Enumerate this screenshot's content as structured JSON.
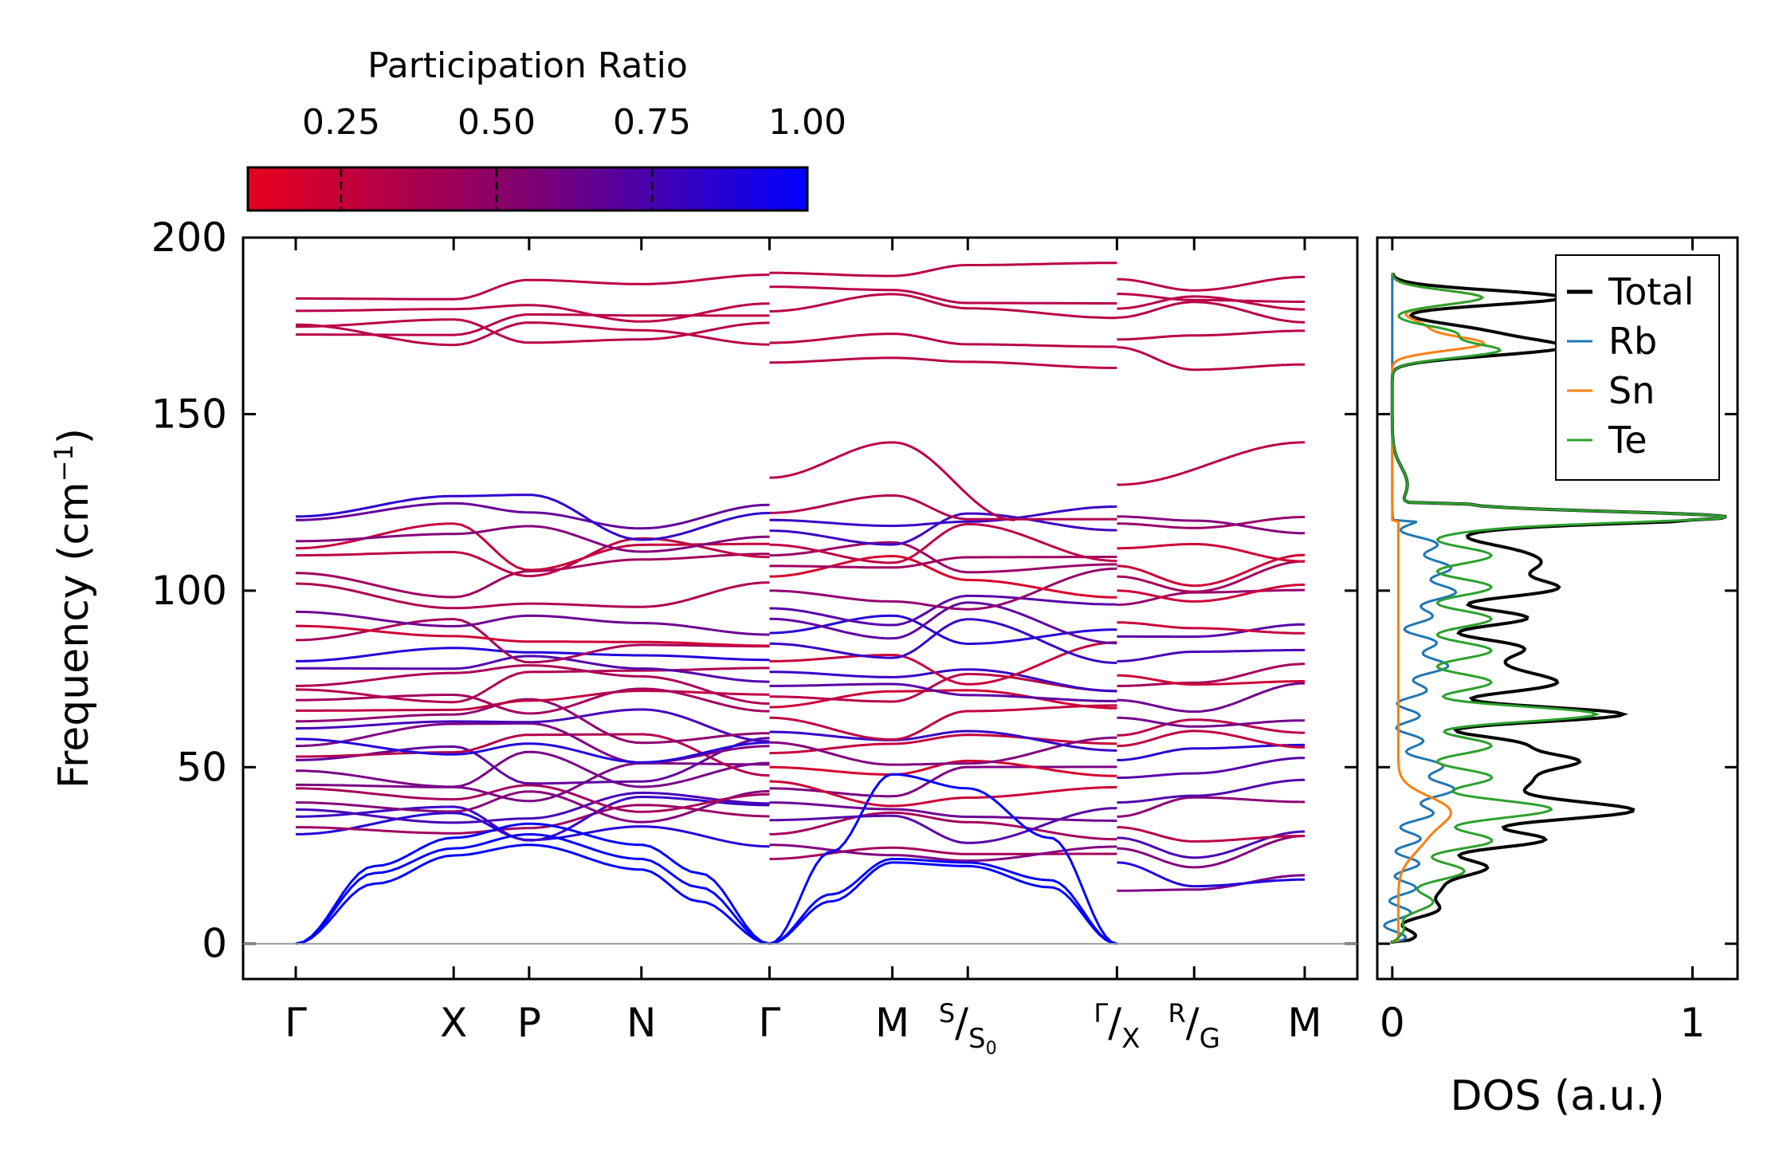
{
  "chart_data": [
    {
      "type": "line",
      "name": "phonon-band-structure",
      "ylabel": "Frequency (cm",
      "ylabel_sup": "−1",
      "ylabel_close": ")",
      "ylim": [
        -10,
        200
      ],
      "yticks": [
        0,
        50,
        100,
        150,
        200
      ],
      "ytick_labels": [
        "0",
        "50",
        "100",
        "150",
        "200"
      ],
      "kpath_x": [
        0,
        0.9,
        1.33,
        1.97,
        2.7,
        3.4,
        3.83,
        4.68,
        5.12,
        5.75
      ],
      "kpath_labels": [
        {
          "x": 0,
          "main": "Γ"
        },
        {
          "x": 0.9,
          "main": "X"
        },
        {
          "x": 1.33,
          "main": "P"
        },
        {
          "x": 1.97,
          "main": "N"
        },
        {
          "x": 2.7,
          "main": "Γ"
        },
        {
          "x": 3.4,
          "main": "M"
        },
        {
          "x": 3.83,
          "num": "S",
          "den": "S",
          "den_sub": "0"
        },
        {
          "x": 4.68,
          "num": "Γ",
          "den": "X"
        },
        {
          "x": 5.12,
          "num": "R",
          "den": "G"
        },
        {
          "x": 5.75,
          "main": "M"
        }
      ],
      "xlim": [
        -0.3,
        6.05
      ],
      "segment_breaks": [
        2.7,
        4.68
      ],
      "acoustic": [
        {
          "x": [
            0,
            0.45,
            0.9,
            1.33,
            1.97,
            2.3,
            2.7
          ],
          "y": [
            0,
            17,
            25,
            28,
            21,
            12,
            0
          ],
          "pr": 1.0
        },
        {
          "x": [
            0,
            0.45,
            0.9,
            1.33,
            1.97,
            2.3,
            2.7
          ],
          "y": [
            0,
            20,
            27,
            31,
            24,
            16,
            0
          ],
          "pr": 1.0
        },
        {
          "x": [
            0,
            0.45,
            0.9,
            1.33,
            1.97,
            2.3,
            2.7
          ],
          "y": [
            0,
            22,
            30,
            34,
            28,
            20,
            0
          ],
          "pr": 1.0
        },
        {
          "x": [
            2.7,
            3.05,
            3.4,
            3.83,
            4.3,
            4.68
          ],
          "y": [
            0,
            12,
            23,
            22,
            16,
            0
          ],
          "pr": 1.0
        },
        {
          "x": [
            2.7,
            3.05,
            3.4,
            3.83,
            4.3,
            4.68
          ],
          "y": [
            0,
            26,
            48,
            44,
            30,
            0
          ],
          "pr": 1.0
        },
        {
          "x": [
            2.7,
            3.05,
            3.4,
            3.83,
            4.3,
            4.68
          ],
          "y": [
            0,
            14,
            24,
            23,
            18,
            0
          ],
          "pr": 1.0
        }
      ],
      "optical_levels_segment1": [
        31,
        33,
        36,
        38,
        40,
        44,
        45,
        49,
        52,
        53,
        56,
        58,
        61,
        63,
        66,
        69,
        72,
        73,
        78,
        80,
        86,
        90,
        94,
        102,
        105,
        110,
        112,
        114,
        120,
        121
      ],
      "optical_levels_segment2": [
        24,
        28,
        31,
        35,
        40,
        44,
        46,
        50,
        54,
        57,
        60,
        64,
        67,
        70,
        73,
        77,
        80,
        85,
        88,
        92,
        95,
        100,
        104,
        107,
        110,
        113,
        117,
        120,
        122
      ],
      "optical_levels_segment3": [
        15,
        23,
        27,
        30,
        33,
        36,
        40,
        47,
        52,
        56,
        59,
        64,
        69,
        73,
        76,
        80,
        87,
        91,
        96,
        100,
        104,
        107,
        112,
        119,
        121
      ],
      "high_bands_segment1": [
        172,
        174,
        176,
        180,
        186
      ],
      "high_bands_segment2": [
        166,
        172,
        180,
        183,
        191
      ],
      "high_bands_segment3": [
        166,
        172,
        178,
        181,
        183,
        187
      ],
      "isolated_band": {
        "x": [
          2.7,
          3.4,
          4.1
        ],
        "y": [
          132,
          142,
          120
        ]
      },
      "isolated_band3": {
        "x": [
          4.68,
          5.75
        ],
        "y": [
          130,
          142
        ]
      }
    },
    {
      "type": "line",
      "name": "phonon-dos",
      "xlabel": "DOS (a.u.)",
      "xlim": [
        -0.05,
        1.15
      ],
      "ylim": [
        -10,
        200
      ],
      "xticks": [
        0,
        1
      ],
      "xtick_labels": [
        "0",
        "1"
      ],
      "series": [
        {
          "name": "Total",
          "color": "#000000"
        },
        {
          "name": "Rb",
          "color": "#1f77b4"
        },
        {
          "name": "Sn",
          "color": "#ff7f0e"
        },
        {
          "name": "Te",
          "color": "#2ca02c"
        }
      ],
      "legend_position": "top-right"
    }
  ],
  "colorbar": {
    "title": "Participation Ratio",
    "ticks": [
      0.25,
      0.5,
      0.75,
      1.0
    ],
    "tick_labels": [
      "0.25",
      "0.50",
      "0.75",
      "1.00"
    ],
    "range": [
      0.1,
      1.0
    ],
    "color_low": "#e8001c",
    "color_mid": "#800080",
    "color_high": "#0000ff"
  }
}
